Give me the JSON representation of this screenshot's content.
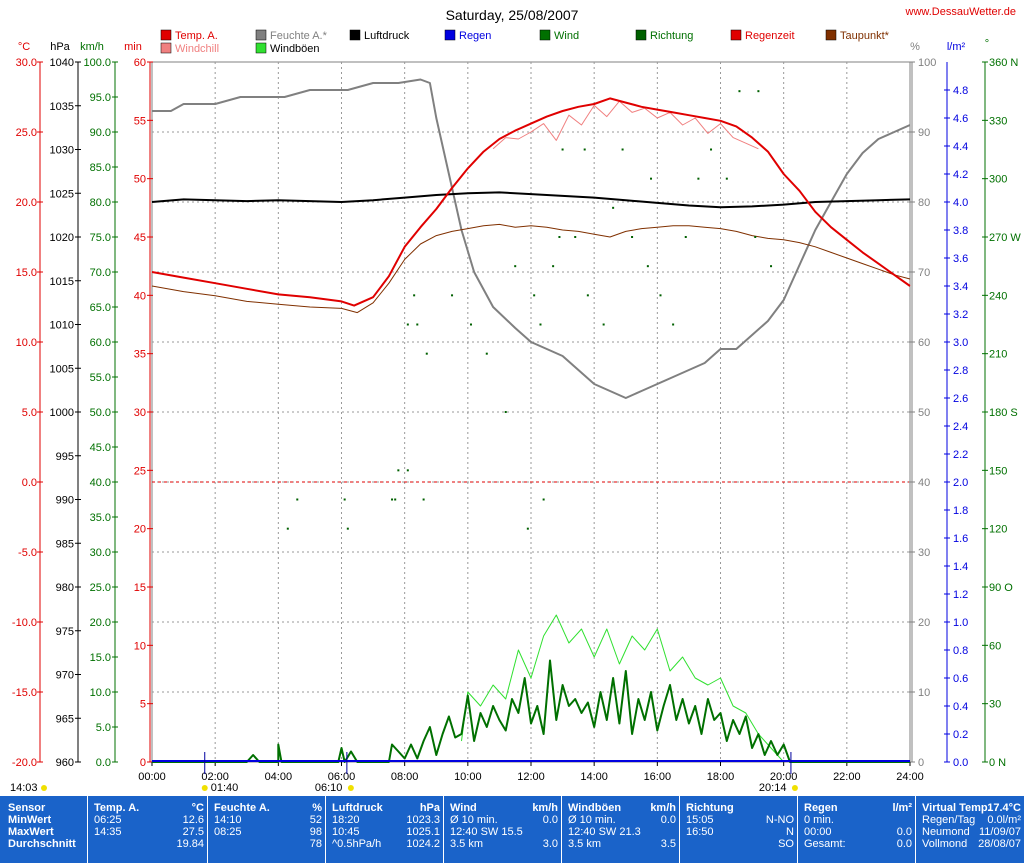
{
  "title": "Saturday, 25/08/2007",
  "site": "www.DessauWetter.de",
  "colors": {
    "temp": "#e00000",
    "windchill": "#f08080",
    "humidity": "#808080",
    "pressure": "#000000",
    "rain": "#0000e0",
    "wind": "#007000",
    "gust": "#30e030",
    "direction": "#006000",
    "dewpoint": "#803000",
    "panel": "#1a63c9"
  },
  "axis_units": {
    "temp": "°C",
    "pressure": "hPa",
    "wind": "km/h",
    "min": "min",
    "percent": "%",
    "rain": "l/m²",
    "degree": "°"
  },
  "legend": [
    {
      "label": "Temp. A.",
      "color": "#e00000"
    },
    {
      "label": "Windchill",
      "color": "#f08080"
    },
    {
      "label": "Feuchte A.*",
      "color": "#808080"
    },
    {
      "label": "Windböen",
      "color": "#30e030"
    },
    {
      "label": "Luftdruck",
      "color": "#000000"
    },
    {
      "label": "Regen",
      "color": "#0000e0"
    },
    {
      "label": "Wind",
      "color": "#007000"
    },
    {
      "label": "Richtung",
      "color": "#006000"
    },
    {
      "label": "Regenzeit",
      "color": "#e00000"
    },
    {
      "label": "Taupunkt*",
      "color": "#803000"
    }
  ],
  "sun_markers": [
    {
      "label": "14:03",
      "hour": 14.05,
      "row": "top"
    },
    {
      "label": "01:40",
      "hour": 1.67,
      "row": "top"
    },
    {
      "label": "06:10",
      "hour": 6.17,
      "row": "top"
    },
    {
      "label": "20:14",
      "hour": 20.23,
      "row": "top"
    }
  ],
  "chart_data": {
    "type": "line",
    "title": "Saturday, 25/08/2007",
    "xlim": [
      0,
      24
    ],
    "x_ticks": [
      "00:00",
      "02:00",
      "04:00",
      "06:00",
      "08:00",
      "10:00",
      "12:00",
      "14:00",
      "16:00",
      "18:00",
      "20:00",
      "22:00",
      "24:00"
    ],
    "axes": {
      "temp_c": {
        "range": [
          -20,
          30
        ],
        "ticks": [
          "30.0",
          "25.0",
          "20.0",
          "15.0",
          "10.0",
          "5.0",
          "0.0",
          "-5.0",
          "-10.0",
          "-15.0",
          "-20.0"
        ]
      },
      "pressure_hpa": {
        "range": [
          960,
          1040
        ],
        "ticks": [
          "1040",
          "1035",
          "1030",
          "1025",
          "1020",
          "1015",
          "1010",
          "1005",
          "1000",
          "995",
          "990",
          "985",
          "980",
          "975",
          "970",
          "965",
          "960"
        ]
      },
      "wind_kmh": {
        "range": [
          0,
          100
        ],
        "ticks": [
          "100.0",
          "95.0",
          "90.0",
          "85.0",
          "80.0",
          "75.0",
          "70.0",
          "65.0",
          "60.0",
          "55.0",
          "50.0",
          "45.0",
          "40.0",
          "35.0",
          "30.0",
          "25.0",
          "20.0",
          "15.0",
          "10.0",
          "5.0",
          "0.0"
        ]
      },
      "rain_minutes": {
        "range": [
          0,
          60
        ],
        "ticks": [
          "60",
          "55",
          "50",
          "45",
          "40",
          "35",
          "30",
          "25",
          "20",
          "15",
          "10",
          "5",
          "0"
        ]
      },
      "humidity_pct": {
        "range": [
          0,
          100
        ],
        "ticks": [
          "100",
          "90",
          "80",
          "70",
          "60",
          "50",
          "40",
          "30",
          "20",
          "10",
          "0"
        ]
      },
      "rain_lm2": {
        "range": [
          0,
          5
        ],
        "ticks": [
          "4.8",
          "4.6",
          "4.4",
          "4.2",
          "4.0",
          "3.8",
          "3.6",
          "3.4",
          "3.2",
          "3.0",
          "2.8",
          "2.6",
          "2.4",
          "2.2",
          "2.0",
          "1.8",
          "1.6",
          "1.4",
          "1.2",
          "1.0",
          "0.8",
          "0.6",
          "0.4",
          "0.2",
          "0.0"
        ]
      },
      "direction_deg": {
        "range": [
          0,
          360
        ],
        "ticks": [
          "360 N",
          "330",
          "300",
          "270 W",
          "240",
          "210",
          "180 S",
          "150",
          "120",
          "90 O",
          "60",
          "30",
          "0 N"
        ]
      }
    },
    "series": [
      {
        "name": "Temp. A.",
        "axis": "temp_c",
        "x": [
          0,
          1,
          2,
          3,
          4,
          5,
          6,
          6.4,
          7,
          7.5,
          8,
          8.5,
          9,
          9.5,
          10,
          10.5,
          11,
          11.5,
          12,
          12.5,
          13,
          13.5,
          14,
          14.5,
          15,
          15.5,
          16,
          16.5,
          17,
          17.5,
          18,
          18.5,
          19,
          19.5,
          20,
          20.5,
          21,
          21.5,
          22,
          22.5,
          23,
          23.5,
          24
        ],
        "y": [
          15.0,
          14.6,
          14.2,
          13.8,
          13.4,
          13.2,
          12.9,
          12.6,
          13.2,
          14.7,
          16.8,
          18.2,
          19.5,
          21.0,
          22.4,
          23.6,
          24.5,
          25.1,
          25.6,
          26.1,
          26.5,
          26.8,
          27.0,
          27.4,
          27.1,
          26.8,
          26.6,
          26.4,
          26.2,
          26.0,
          25.8,
          25.4,
          24.6,
          23.6,
          22.0,
          20.8,
          19.3,
          18.2,
          17.3,
          16.4,
          15.6,
          14.8,
          14.0
        ]
      },
      {
        "name": "Feuchte A.*",
        "axis": "humidity_pct",
        "x": [
          0,
          0.6,
          1,
          2,
          2.8,
          3.5,
          4.2,
          5,
          6.2,
          7,
          7.8,
          8.5,
          8.8,
          9,
          9.4,
          9.8,
          10.2,
          10.8,
          11.5,
          12,
          12.5,
          13,
          13.5,
          14,
          14.5,
          15,
          15.5,
          16,
          16.5,
          17,
          17.5,
          18,
          18.5,
          19,
          19.5,
          20,
          20.5,
          21,
          21.5,
          22,
          22.5,
          23,
          23.5,
          24
        ],
        "y": [
          93,
          93,
          94,
          94,
          95,
          95,
          95,
          96,
          96,
          97,
          97,
          97.5,
          97,
          92,
          84,
          76,
          70,
          65,
          62,
          60,
          59,
          58,
          56,
          54,
          53,
          52,
          53,
          54,
          55,
          56,
          57,
          59,
          59,
          61,
          63,
          66,
          71,
          76,
          80,
          84,
          87,
          89,
          90,
          91
        ]
      },
      {
        "name": "Luftdruck",
        "axis": "pressure_hpa",
        "x": [
          0,
          1,
          2,
          3,
          4,
          5,
          6,
          7,
          8,
          9,
          10,
          11,
          12,
          13,
          14,
          15,
          16,
          17,
          18,
          19,
          20,
          21,
          22,
          23,
          24
        ],
        "y": [
          1024.0,
          1024.3,
          1024.2,
          1024.1,
          1024.2,
          1024.1,
          1024.0,
          1024.2,
          1024.5,
          1024.8,
          1025.0,
          1025.1,
          1024.9,
          1024.7,
          1024.5,
          1024.2,
          1023.9,
          1023.6,
          1023.4,
          1023.5,
          1023.7,
          1024.0,
          1024.1,
          1024.2,
          1024.3
        ]
      },
      {
        "name": "Taupunkt*",
        "axis": "temp_c",
        "x": [
          0,
          1,
          2,
          3,
          4,
          5,
          6,
          6.5,
          7,
          7.5,
          8,
          8.5,
          9,
          9.5,
          10,
          10.5,
          11,
          11.5,
          12,
          12.5,
          13,
          13.5,
          14,
          14.5,
          15,
          15.5,
          16,
          16.5,
          17,
          17.5,
          18,
          18.5,
          19,
          19.5,
          20,
          20.5,
          21,
          21.5,
          22,
          22.5,
          23,
          23.5,
          24
        ],
        "y": [
          14.0,
          13.6,
          13.3,
          12.9,
          12.7,
          12.5,
          12.4,
          12.1,
          12.8,
          14.2,
          15.9,
          17.0,
          17.6,
          17.9,
          18.1,
          18.3,
          18.4,
          18.2,
          18.3,
          18.2,
          18.0,
          17.9,
          17.7,
          17.5,
          17.9,
          18.1,
          18.2,
          18.3,
          18.3,
          18.2,
          18.1,
          17.9,
          17.6,
          17.4,
          17.3,
          17.1,
          16.8,
          16.4,
          16.0,
          15.6,
          15.2,
          14.8,
          14.5
        ]
      },
      {
        "name": "Wind",
        "axis": "wind_kmh",
        "x": [
          0,
          3,
          3.2,
          3.4,
          3.6,
          4,
          4,
          4.1,
          4.2,
          5,
          5.9,
          6,
          6.1,
          6.3,
          6.5,
          7.5,
          7.6,
          7.8,
          8.0,
          8.2,
          8.4,
          8.6,
          8.8,
          9.0,
          9.2,
          9.4,
          9.6,
          9.8,
          10.0,
          10.2,
          10.4,
          10.6,
          10.8,
          11.0,
          11.2,
          11.4,
          11.6,
          11.8,
          12.0,
          12.2,
          12.4,
          12.6,
          12.8,
          13.0,
          13.2,
          13.4,
          13.6,
          13.8,
          14.0,
          14.2,
          14.4,
          14.6,
          14.8,
          15.0,
          15.2,
          15.4,
          15.6,
          15.8,
          16.0,
          16.2,
          16.4,
          16.6,
          16.8,
          17.0,
          17.2,
          17.4,
          17.6,
          17.8,
          18.0,
          18.2,
          18.4,
          18.6,
          18.8,
          19.0,
          19.2,
          19.4,
          19.6,
          19.8,
          20.0,
          20.2,
          24
        ],
        "y": [
          0,
          0,
          1,
          0,
          0,
          0,
          2.5,
          0,
          0,
          0,
          0,
          2,
          0,
          1.5,
          0,
          0,
          2.5,
          1.5,
          0.5,
          2.5,
          0.5,
          3,
          5,
          1,
          4,
          6.5,
          3.5,
          4,
          9.5,
          3,
          7,
          5,
          8,
          6,
          4.5,
          9,
          7,
          12,
          5.5,
          8,
          4,
          14.5,
          6,
          11,
          8,
          9,
          7,
          8.5,
          5,
          10,
          6,
          12,
          5.5,
          13,
          4,
          9,
          6,
          10,
          4.5,
          8,
          11,
          6,
          9,
          5.5,
          8,
          4,
          9,
          6,
          7,
          3,
          6,
          4,
          6.5,
          2,
          4,
          1,
          3,
          1,
          2.5,
          0,
          0
        ]
      },
      {
        "name": "Windböen",
        "axis": "wind_kmh",
        "x": [
          9.8,
          10.0,
          10.4,
          10.8,
          11.2,
          11.6,
          12.0,
          12.4,
          12.8,
          13.2,
          13.6,
          14.0,
          14.4,
          14.8,
          15.2,
          15.6,
          16.0,
          16.4,
          16.8,
          17.2,
          17.6,
          18.0,
          18.4,
          18.8,
          19.2,
          19.6,
          20.0
        ],
        "y": [
          3,
          10,
          8,
          11,
          9,
          16,
          12,
          18,
          21,
          17,
          19,
          15,
          19,
          14,
          18,
          16,
          19,
          13,
          15,
          12,
          11,
          12,
          8,
          7,
          4,
          2,
          0
        ]
      },
      {
        "name": "Windchill",
        "axis": "temp_c",
        "x": [
          10.8,
          11.2,
          11.6,
          12.0,
          12.4,
          12.8,
          13.2,
          13.6,
          14.0,
          14.4,
          14.8,
          15.2,
          15.6,
          16.0,
          16.4,
          16.8,
          17.2,
          17.6,
          18.0,
          18.4,
          18.8,
          19.2
        ],
        "y": [
          23.8,
          24.6,
          24.5,
          25.0,
          25.6,
          24.4,
          26.2,
          25.5,
          26.9,
          26.1,
          27.2,
          26.4,
          26.7,
          26.0,
          26.4,
          25.5,
          26.0,
          24.9,
          25.6,
          24.6,
          24.2,
          23.8
        ]
      }
    ],
    "direction_points_deg": [
      {
        "x": 4.3,
        "y": 120
      },
      {
        "x": 4.6,
        "y": 135
      },
      {
        "x": 6.1,
        "y": 135
      },
      {
        "x": 6.2,
        "y": 120
      },
      {
        "x": 7.6,
        "y": 135
      },
      {
        "x": 7.7,
        "y": 135
      },
      {
        "x": 7.8,
        "y": 150
      },
      {
        "x": 8.1,
        "y": 150
      },
      {
        "x": 8.6,
        "y": 135
      },
      {
        "x": 8.1,
        "y": 225
      },
      {
        "x": 8.4,
        "y": 225
      },
      {
        "x": 8.7,
        "y": 210
      },
      {
        "x": 8.3,
        "y": 240
      },
      {
        "x": 9.5,
        "y": 240
      },
      {
        "x": 10.1,
        "y": 225
      },
      {
        "x": 10.6,
        "y": 210
      },
      {
        "x": 11.2,
        "y": 180
      },
      {
        "x": 12.1,
        "y": 240
      },
      {
        "x": 12.3,
        "y": 225
      },
      {
        "x": 12.7,
        "y": 255
      },
      {
        "x": 12.9,
        "y": 270
      },
      {
        "x": 13.4,
        "y": 270
      },
      {
        "x": 13.8,
        "y": 240
      },
      {
        "x": 14.3,
        "y": 225
      },
      {
        "x": 14.6,
        "y": 285
      },
      {
        "x": 15.2,
        "y": 270
      },
      {
        "x": 15.7,
        "y": 255
      },
      {
        "x": 16.1,
        "y": 240
      },
      {
        "x": 16.5,
        "y": 225
      },
      {
        "x": 16.9,
        "y": 270
      },
      {
        "x": 17.3,
        "y": 300
      },
      {
        "x": 17.7,
        "y": 315
      },
      {
        "x": 18.2,
        "y": 300
      },
      {
        "x": 18.6,
        "y": 345
      },
      {
        "x": 19.1,
        "y": 270
      },
      {
        "x": 19.6,
        "y": 255
      },
      {
        "x": 11.9,
        "y": 120
      },
      {
        "x": 12.4,
        "y": 135
      },
      {
        "x": 13.0,
        "y": 315
      },
      {
        "x": 13.7,
        "y": 315
      },
      {
        "x": 15.8,
        "y": 300
      },
      {
        "x": 19.2,
        "y": 345
      },
      {
        "x": 14.9,
        "y": 315
      },
      {
        "x": 11.5,
        "y": 255
      }
    ],
    "reference_lines": [
      {
        "axis": "temp_c",
        "y": 0.0,
        "style": "dashed",
        "color": "#e00000"
      }
    ]
  },
  "stats": {
    "columns": [
      {
        "header_l": "Sensor",
        "header_r": "",
        "rows": [
          [
            "MinWert",
            ""
          ],
          [
            "MaxWert",
            ""
          ],
          [
            "Durchschnitt",
            ""
          ]
        ]
      },
      {
        "header_l": "Temp. A.",
        "header_r": "°C",
        "rows": [
          [
            "06:25",
            "12.6"
          ],
          [
            "14:35",
            "27.5"
          ],
          [
            "",
            "19.84"
          ]
        ]
      },
      {
        "header_l": "Feuchte A.",
        "header_r": "%",
        "rows": [
          [
            "14:10",
            "52"
          ],
          [
            "08:25",
            "98"
          ],
          [
            "",
            "78"
          ]
        ]
      },
      {
        "header_l": "Luftdruck",
        "header_r": "hPa",
        "rows": [
          [
            "18:20",
            "1023.3"
          ],
          [
            "10:45",
            "1025.1"
          ],
          [
            "^0.5hPa/h",
            "1024.2"
          ]
        ]
      },
      {
        "header_l": "Wind",
        "header_r": "km/h",
        "rows": [
          [
            "Ø 10 min.",
            "0.0"
          ],
          [
            "12:40    SW 15.5",
            ""
          ],
          [
            "3.5 km",
            "3.0"
          ]
        ]
      },
      {
        "header_l": "Windböen",
        "header_r": "km/h",
        "rows": [
          [
            "Ø 10 min.",
            "0.0"
          ],
          [
            "12:40    SW 21.3",
            ""
          ],
          [
            "3.5 km",
            "3.5"
          ]
        ]
      },
      {
        "header_l": "Richtung",
        "header_r": "",
        "rows": [
          [
            "15:05",
            "N-NO"
          ],
          [
            "16:50",
            "N"
          ],
          [
            "",
            "SO"
          ]
        ]
      },
      {
        "header_l": "Regen",
        "header_r": "l/m²",
        "rows": [
          [
            "0 min.",
            ""
          ],
          [
            "00:00",
            "0.0"
          ],
          [
            "Gesamt:",
            "0.0"
          ]
        ]
      },
      {
        "header_l": "Virtual Temp.",
        "header_r": "17.4°C",
        "rows": [
          [
            "Regen/Tag",
            "0.0l/m²"
          ],
          [
            "Neumond",
            "11/09/07"
          ],
          [
            "Vollmond",
            "28/08/07"
          ]
        ]
      }
    ]
  }
}
